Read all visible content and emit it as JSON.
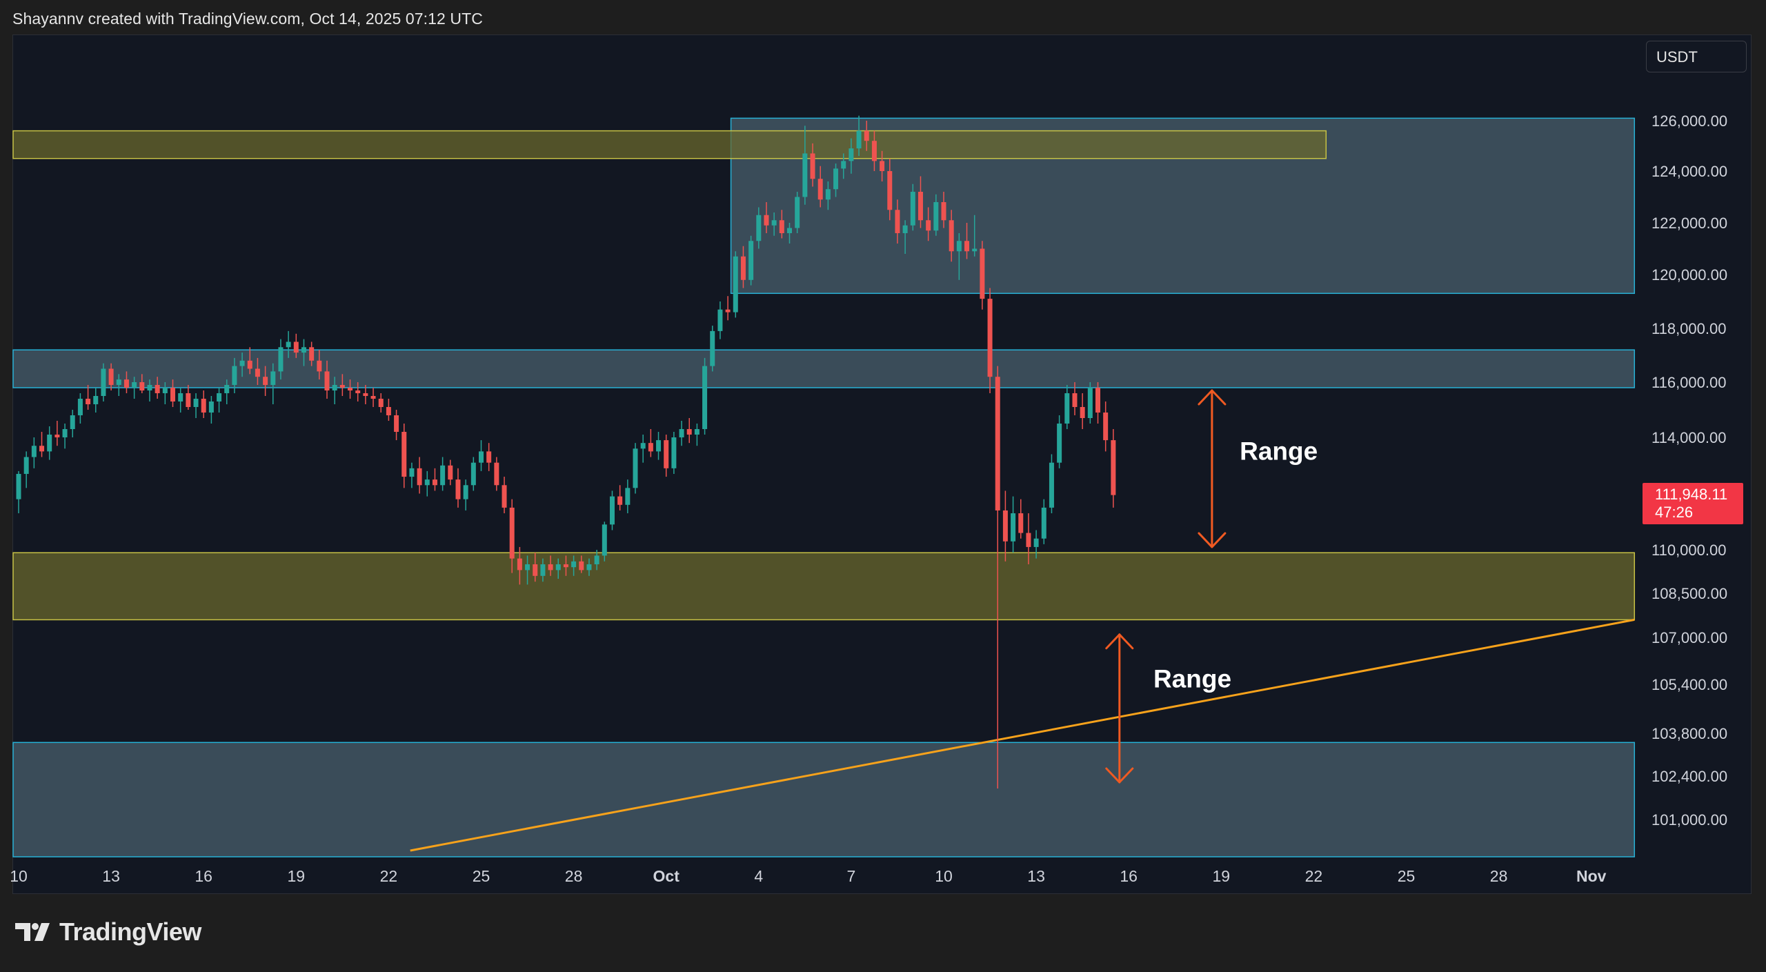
{
  "header": {
    "attribution": "Shayannv created with TradingView.com, Oct 14, 2025 07:12 UTC"
  },
  "colors": {
    "background": "#121722",
    "up_candle": "#26a69a",
    "down_candle": "#ef5350",
    "blue_zone_fill": "#546e7a",
    "blue_zone_border": "#27b1d6",
    "yellow_zone_fill": "#6b6a2c",
    "yellow_zone_border": "#c7c245",
    "trendline": "#f7a21b",
    "range_arrow": "#f05a22",
    "last_price_bg": "#f23645"
  },
  "chart_data": {
    "type": "candlestick",
    "symbol_currency": "USDT",
    "last_price": {
      "value": "111,948.11",
      "countdown": "47:26"
    },
    "y_axis": {
      "labels": [
        {
          "value": 126000,
          "text": "126,000.00"
        },
        {
          "value": 124000,
          "text": "124,000.00"
        },
        {
          "value": 122000,
          "text": "122,000.00"
        },
        {
          "value": 120000,
          "text": "120,000.00"
        },
        {
          "value": 118000,
          "text": "118,000.00"
        },
        {
          "value": 116000,
          "text": "116,000.00"
        },
        {
          "value": 114000,
          "text": "114,000.00"
        },
        {
          "value": 110000,
          "text": "110,000.00"
        },
        {
          "value": 108500,
          "text": "108,500.00"
        },
        {
          "value": 107000,
          "text": "107,000.00"
        },
        {
          "value": 105400,
          "text": "105,400.00"
        },
        {
          "value": 103800,
          "text": "103,800.00"
        },
        {
          "value": 102400,
          "text": "102,400.00"
        },
        {
          "value": 101000,
          "text": "101,000.00"
        }
      ]
    },
    "x_axis": {
      "labels": [
        {
          "day": 0,
          "text": "10",
          "bold": false
        },
        {
          "day": 3,
          "text": "13",
          "bold": false
        },
        {
          "day": 6,
          "text": "16",
          "bold": false
        },
        {
          "day": 9,
          "text": "19",
          "bold": false
        },
        {
          "day": 12,
          "text": "22",
          "bold": false
        },
        {
          "day": 15,
          "text": "25",
          "bold": false
        },
        {
          "day": 18,
          "text": "28",
          "bold": false
        },
        {
          "day": 21,
          "text": "Oct",
          "bold": true
        },
        {
          "day": 24,
          "text": "4",
          "bold": false
        },
        {
          "day": 27,
          "text": "7",
          "bold": false
        },
        {
          "day": 30,
          "text": "10",
          "bold": false
        },
        {
          "day": 33,
          "text": "13",
          "bold": false
        },
        {
          "day": 36,
          "text": "16",
          "bold": false
        },
        {
          "day": 39,
          "text": "19",
          "bold": false
        },
        {
          "day": 42,
          "text": "22",
          "bold": false
        },
        {
          "day": 45,
          "text": "25",
          "bold": false
        },
        {
          "day": 48,
          "text": "28",
          "bold": false
        },
        {
          "day": 51,
          "text": "Nov",
          "bold": true
        }
      ]
    },
    "zones": [
      {
        "name": "supply-zone-upper",
        "color": "blue",
        "day_start": 23.1,
        "day_end": 52.4,
        "low": 119300,
        "high": 126100
      },
      {
        "name": "resistance-zone",
        "color": "blue",
        "day_start": -0.2,
        "day_end": 52.4,
        "low": 115800,
        "high": 117200
      },
      {
        "name": "resistance-zone-top",
        "color": "yellow",
        "day_start": -0.2,
        "day_end": 42.4,
        "low": 124500,
        "high": 125600
      },
      {
        "name": "support-zone",
        "color": "yellow",
        "day_start": -0.2,
        "day_end": 52.4,
        "low": 107600,
        "high": 109900
      },
      {
        "name": "demand-zone-lower",
        "color": "blue",
        "day_start": -0.2,
        "day_end": 52.4,
        "low": 99800,
        "high": 103500
      }
    ],
    "trendline": {
      "day_start": 12.7,
      "value_start": 100000,
      "day_end": 52.4,
      "value_end": 107600
    },
    "annotations": [
      {
        "label": "Range",
        "arrow_day": 38.7,
        "arrow_top": 115700,
        "arrow_bottom": 110100,
        "label_day": 39.6,
        "label_value": 113200
      },
      {
        "label": "Range",
        "arrow_day": 35.7,
        "arrow_top": 107100,
        "arrow_bottom": 102200,
        "label_day": 36.8,
        "label_value": 105300
      }
    ],
    "candles": [
      [
        0.0,
        111800,
        112800,
        111300,
        112700
      ],
      [
        0.25,
        112700,
        113500,
        112200,
        113300
      ],
      [
        0.5,
        113300,
        114000,
        112900,
        113700
      ],
      [
        0.75,
        113700,
        114200,
        113300,
        113500
      ],
      [
        1.0,
        113500,
        114400,
        113200,
        114100
      ],
      [
        1.25,
        114100,
        114600,
        113700,
        114000
      ],
      [
        1.5,
        114000,
        114500,
        113600,
        114300
      ],
      [
        1.75,
        114300,
        115000,
        114000,
        114800
      ],
      [
        2.0,
        114800,
        115600,
        114500,
        115400
      ],
      [
        2.25,
        115400,
        115900,
        115000,
        115200
      ],
      [
        2.5,
        115200,
        115800,
        114900,
        115500
      ],
      [
        2.75,
        115500,
        116700,
        115300,
        116500
      ],
      [
        3.0,
        116500,
        116700,
        115700,
        115900
      ],
      [
        3.25,
        115900,
        116300,
        115500,
        116100
      ],
      [
        3.5,
        116100,
        116400,
        115600,
        115800
      ],
      [
        3.75,
        115800,
        116200,
        115400,
        116000
      ],
      [
        4.0,
        116000,
        116300,
        115600,
        115700
      ],
      [
        4.25,
        115700,
        116100,
        115300,
        115900
      ],
      [
        4.5,
        115900,
        116200,
        115400,
        115600
      ],
      [
        4.75,
        115600,
        116000,
        115200,
        115800
      ],
      [
        5.0,
        115800,
        116100,
        115100,
        115300
      ],
      [
        5.25,
        115300,
        115800,
        114900,
        115600
      ],
      [
        5.5,
        115600,
        115900,
        115000,
        115100
      ],
      [
        5.75,
        115100,
        115600,
        114700,
        115400
      ],
      [
        6.0,
        115400,
        115700,
        114700,
        114900
      ],
      [
        6.25,
        114900,
        115500,
        114500,
        115300
      ],
      [
        6.5,
        115300,
        115800,
        114900,
        115600
      ],
      [
        6.75,
        115600,
        116100,
        115200,
        115900
      ],
      [
        7.0,
        115900,
        116900,
        115600,
        116600
      ],
      [
        7.25,
        116600,
        117100,
        116200,
        116800
      ],
      [
        7.5,
        116800,
        117300,
        116300,
        116500
      ],
      [
        7.75,
        116500,
        116900,
        115900,
        116200
      ],
      [
        8.0,
        116200,
        116600,
        115500,
        115900
      ],
      [
        8.25,
        115900,
        116700,
        115200,
        116400
      ],
      [
        8.5,
        116400,
        117600,
        116100,
        117300
      ],
      [
        8.75,
        117300,
        117900,
        116900,
        117500
      ],
      [
        9.0,
        117500,
        117800,
        116900,
        117100
      ],
      [
        9.25,
        117100,
        117600,
        116600,
        117300
      ],
      [
        9.5,
        117300,
        117500,
        116600,
        116800
      ],
      [
        9.75,
        116800,
        117200,
        116100,
        116400
      ],
      [
        10.0,
        116400,
        116800,
        115400,
        115700
      ],
      [
        10.25,
        115700,
        116200,
        115200,
        115900
      ],
      [
        10.5,
        115900,
        116300,
        115500,
        115800
      ],
      [
        10.75,
        115800,
        116100,
        115400,
        115700
      ],
      [
        11.0,
        115700,
        116000,
        115300,
        115600
      ],
      [
        11.25,
        115600,
        115900,
        115200,
        115500
      ],
      [
        11.5,
        115500,
        115800,
        115100,
        115400
      ],
      [
        11.75,
        115400,
        115600,
        114900,
        115100
      ],
      [
        12.0,
        115100,
        115400,
        114600,
        114800
      ],
      [
        12.25,
        114800,
        115000,
        113900,
        114200
      ],
      [
        12.5,
        114200,
        114500,
        112200,
        112600
      ],
      [
        12.75,
        112600,
        113100,
        112200,
        112900
      ],
      [
        13.0,
        112900,
        113300,
        112000,
        112300
      ],
      [
        13.25,
        112300,
        112800,
        111900,
        112500
      ],
      [
        13.5,
        112500,
        112900,
        112100,
        112300
      ],
      [
        13.75,
        112300,
        113300,
        112100,
        113000
      ],
      [
        14.0,
        113000,
        113200,
        112300,
        112500
      ],
      [
        14.25,
        112500,
        112900,
        111500,
        111800
      ],
      [
        14.5,
        111800,
        112500,
        111400,
        112300
      ],
      [
        14.75,
        112300,
        113300,
        112100,
        113100
      ],
      [
        15.0,
        113100,
        113900,
        112800,
        113500
      ],
      [
        15.25,
        113500,
        113800,
        112800,
        113100
      ],
      [
        15.5,
        113100,
        113300,
        112100,
        112300
      ],
      [
        15.75,
        112300,
        112600,
        111300,
        111500
      ],
      [
        16.0,
        111500,
        111800,
        109200,
        109700
      ],
      [
        16.25,
        109700,
        110100,
        108800,
        109300
      ],
      [
        16.5,
        109300,
        109800,
        108800,
        109500
      ],
      [
        16.75,
        109500,
        109900,
        108900,
        109100
      ],
      [
        17.0,
        109100,
        109700,
        108900,
        109500
      ],
      [
        17.25,
        109500,
        109800,
        109100,
        109300
      ],
      [
        17.5,
        109300,
        109700,
        109000,
        109500
      ],
      [
        17.75,
        109500,
        109800,
        109100,
        109400
      ],
      [
        18.0,
        109400,
        109800,
        109100,
        109600
      ],
      [
        18.25,
        109600,
        109800,
        109200,
        109300
      ],
      [
        18.5,
        109300,
        109700,
        109100,
        109500
      ],
      [
        18.75,
        109500,
        110000,
        109300,
        109800
      ],
      [
        19.0,
        109800,
        111000,
        109600,
        110900
      ],
      [
        19.25,
        110900,
        112100,
        110700,
        111900
      ],
      [
        19.5,
        111900,
        112300,
        111400,
        111600
      ],
      [
        19.75,
        111600,
        112500,
        111300,
        112200
      ],
      [
        20.0,
        112200,
        113800,
        112000,
        113600
      ],
      [
        20.25,
        113600,
        114100,
        113100,
        113800
      ],
      [
        20.5,
        113800,
        114300,
        113300,
        113500
      ],
      [
        20.75,
        113500,
        114200,
        113200,
        113900
      ],
      [
        21.0,
        113900,
        114100,
        112600,
        112900
      ],
      [
        21.25,
        112900,
        114200,
        112700,
        114000
      ],
      [
        21.5,
        114000,
        114600,
        113700,
        114300
      ],
      [
        21.75,
        114300,
        114700,
        113800,
        114100
      ],
      [
        22.0,
        114100,
        114500,
        113700,
        114300
      ],
      [
        22.25,
        114300,
        116900,
        114100,
        116600
      ],
      [
        22.5,
        116600,
        118100,
        116400,
        117900
      ],
      [
        22.75,
        117900,
        119000,
        117600,
        118700
      ],
      [
        23.0,
        118700,
        119200,
        118300,
        118600
      ],
      [
        23.25,
        118600,
        120900,
        118400,
        120700
      ],
      [
        23.5,
        120700,
        121100,
        119500,
        119800
      ],
      [
        23.75,
        119800,
        121500,
        119600,
        121300
      ],
      [
        24.0,
        121300,
        122600,
        121000,
        122300
      ],
      [
        24.25,
        122300,
        122800,
        121600,
        121900
      ],
      [
        24.5,
        121900,
        122400,
        121500,
        122100
      ],
      [
        24.75,
        122100,
        122500,
        121400,
        121600
      ],
      [
        25.0,
        121600,
        122000,
        121200,
        121800
      ],
      [
        25.25,
        121800,
        123200,
        121600,
        123000
      ],
      [
        25.5,
        123000,
        125800,
        122700,
        124700
      ],
      [
        25.75,
        124700,
        125100,
        123400,
        123700
      ],
      [
        26.0,
        123700,
        124200,
        122600,
        122900
      ],
      [
        26.25,
        122900,
        123600,
        122500,
        123300
      ],
      [
        26.5,
        123300,
        124300,
        123000,
        124100
      ],
      [
        26.75,
        124100,
        124700,
        123700,
        124400
      ],
      [
        27.0,
        124400,
        125300,
        123900,
        124900
      ],
      [
        27.25,
        124900,
        126200,
        124600,
        125600
      ],
      [
        27.5,
        125600,
        126000,
        124800,
        125200
      ],
      [
        27.75,
        125200,
        125600,
        124000,
        124400
      ],
      [
        28.0,
        124400,
        124800,
        123600,
        124000
      ],
      [
        28.25,
        124000,
        124500,
        122100,
        122500
      ],
      [
        28.5,
        122500,
        122900,
        121200,
        121600
      ],
      [
        28.75,
        121600,
        122100,
        120800,
        121900
      ],
      [
        29.0,
        121900,
        123500,
        121700,
        123200
      ],
      [
        29.25,
        123200,
        123800,
        121800,
        122100
      ],
      [
        29.5,
        122100,
        122600,
        121300,
        121700
      ],
      [
        29.75,
        121700,
        123100,
        121500,
        122800
      ],
      [
        30.0,
        122800,
        123200,
        121800,
        122100
      ],
      [
        30.25,
        122100,
        122500,
        120500,
        120900
      ],
      [
        30.5,
        120900,
        121600,
        119800,
        121300
      ],
      [
        30.75,
        121300,
        122000,
        120600,
        120900
      ],
      [
        31.0,
        120900,
        122300,
        120700,
        121000
      ],
      [
        31.25,
        121000,
        121300,
        118700,
        119100
      ],
      [
        31.5,
        119100,
        119500,
        115600,
        116200
      ],
      [
        31.75,
        116200,
        116600,
        102000,
        111400
      ],
      [
        32.0,
        111400,
        112100,
        109600,
        110300
      ],
      [
        32.25,
        110300,
        111900,
        109900,
        111300
      ],
      [
        32.5,
        111300,
        111800,
        110400,
        110600
      ],
      [
        32.75,
        110600,
        111300,
        109500,
        110100
      ],
      [
        33.0,
        110100,
        110700,
        109700,
        110400
      ],
      [
        33.25,
        110400,
        111800,
        110200,
        111500
      ],
      [
        33.5,
        111500,
        113400,
        111300,
        113100
      ],
      [
        33.75,
        113100,
        114800,
        112900,
        114500
      ],
      [
        34.0,
        114500,
        115900,
        114300,
        115600
      ],
      [
        34.25,
        115600,
        116000,
        114800,
        115100
      ],
      [
        34.5,
        115100,
        115600,
        114300,
        114700
      ],
      [
        34.75,
        114700,
        116000,
        114500,
        115800
      ],
      [
        35.0,
        115800,
        116000,
        114500,
        114900
      ],
      [
        35.25,
        114900,
        115300,
        113500,
        113900
      ],
      [
        35.5,
        113900,
        114300,
        111500,
        111948
      ]
    ]
  },
  "footer": {
    "brand": "TradingView"
  }
}
